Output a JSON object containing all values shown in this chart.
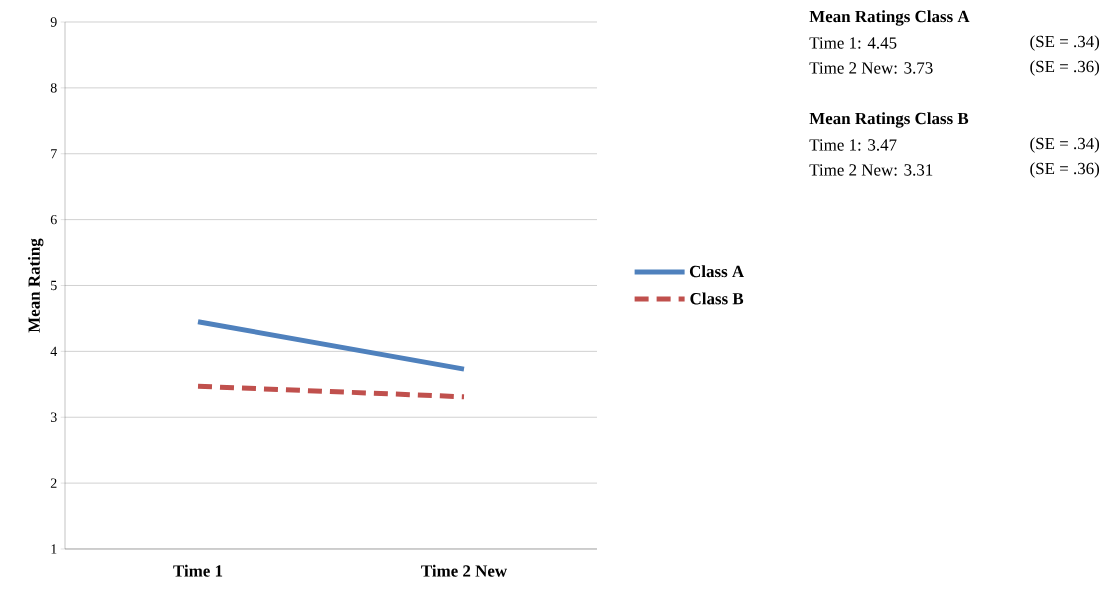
{
  "chart_data": {
    "type": "line",
    "ylabel": "Mean Rating",
    "categories": [
      "Time 1",
      "Time 2 New"
    ],
    "series": [
      {
        "name": "Class A",
        "color": "#4f81bd",
        "values": [
          4.45,
          3.73
        ],
        "line_style": "solid"
      },
      {
        "name": "Class B",
        "color": "#c0504d",
        "values": [
          3.47,
          3.31
        ],
        "line_style": "dashed"
      }
    ],
    "ylim": [
      1,
      9
    ],
    "yticks": [
      1,
      2,
      3,
      4,
      5,
      6,
      7,
      8,
      9
    ],
    "grid": "y",
    "legend": "right",
    "marker": "none",
    "annotations": [
      "Mean Ratings Class A",
      "Time 1: 4.45",
      "(SE = .34)",
      "Time 2 New: 3.73",
      "(SE = .36)",
      "Mean Ratings Class B",
      "Time 1: 3.47",
      "(SE = .34)",
      "Time 2 New: 3.31",
      "(SE = .36)"
    ]
  }
}
